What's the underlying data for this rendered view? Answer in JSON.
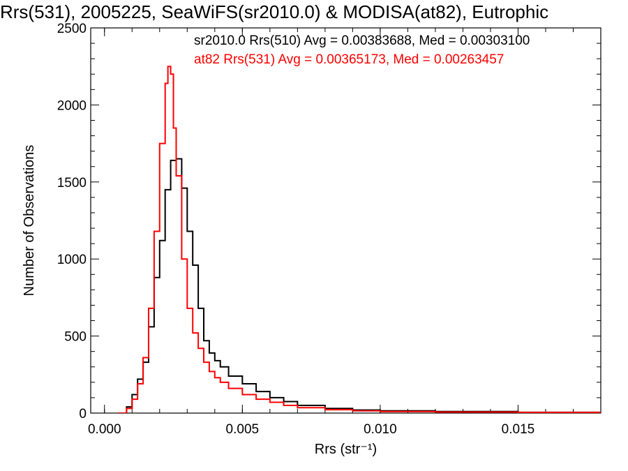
{
  "chart_data": {
    "type": "line",
    "title": "Rrs(531), 2005225, SeaWiFS(sr2010.0) & MODISA(at82), Eutrophic",
    "xlabel": "Rrs (str⁻¹)",
    "ylabel": "Number of Observations",
    "xlim": [
      -0.0005,
      0.018
    ],
    "ylim": [
      0,
      2500
    ],
    "xticks": [
      0.0,
      0.005,
      0.01,
      0.015
    ],
    "xtick_labels": [
      "0.000",
      "0.005",
      "0.010",
      "0.015"
    ],
    "yticks": [
      0,
      500,
      1000,
      1500,
      2000,
      2500
    ],
    "ytick_labels": [
      "0",
      "500",
      "1000",
      "1500",
      "2000",
      "2500"
    ],
    "grid": false,
    "legend_placement": "top-right",
    "series": [
      {
        "name": "sr2010.0 Rrs(510) Avg = 0.00383688, Med = 0.00303100",
        "color": "#000000",
        "x": [
          0.0005,
          0.0008,
          0.001,
          0.0012,
          0.0014,
          0.0016,
          0.0018,
          0.002,
          0.0022,
          0.0024,
          0.0026,
          0.0028,
          0.003,
          0.0032,
          0.0034,
          0.0036,
          0.0038,
          0.004,
          0.0042,
          0.0045,
          0.005,
          0.0055,
          0.006,
          0.0065,
          0.007,
          0.008,
          0.009,
          0.01,
          0.012,
          0.015,
          0.018
        ],
        "values": [
          0,
          40,
          120,
          220,
          330,
          560,
          880,
          1120,
          1450,
          1640,
          1650,
          1460,
          1180,
          960,
          680,
          470,
          390,
          340,
          300,
          240,
          190,
          140,
          100,
          75,
          50,
          30,
          20,
          15,
          10,
          5,
          2
        ]
      },
      {
        "name": "at82 Rrs(531) Avg = 0.00365173, Med = 0.00263457",
        "color": "#ff0000",
        "x": [
          0.0005,
          0.0008,
          0.001,
          0.0012,
          0.0014,
          0.0016,
          0.0018,
          0.002,
          0.0022,
          0.0023,
          0.0024,
          0.0025,
          0.0026,
          0.0028,
          0.003,
          0.0032,
          0.0034,
          0.0036,
          0.0038,
          0.004,
          0.0042,
          0.0045,
          0.005,
          0.0055,
          0.006,
          0.0065,
          0.007,
          0.008,
          0.009,
          0.01,
          0.012,
          0.015,
          0.018
        ],
        "values": [
          0,
          30,
          90,
          190,
          360,
          680,
          1180,
          1750,
          2140,
          2250,
          2200,
          1850,
          1540,
          1000,
          680,
          520,
          420,
          330,
          270,
          230,
          200,
          160,
          120,
          90,
          70,
          50,
          35,
          22,
          15,
          10,
          7,
          4,
          2
        ]
      }
    ]
  }
}
